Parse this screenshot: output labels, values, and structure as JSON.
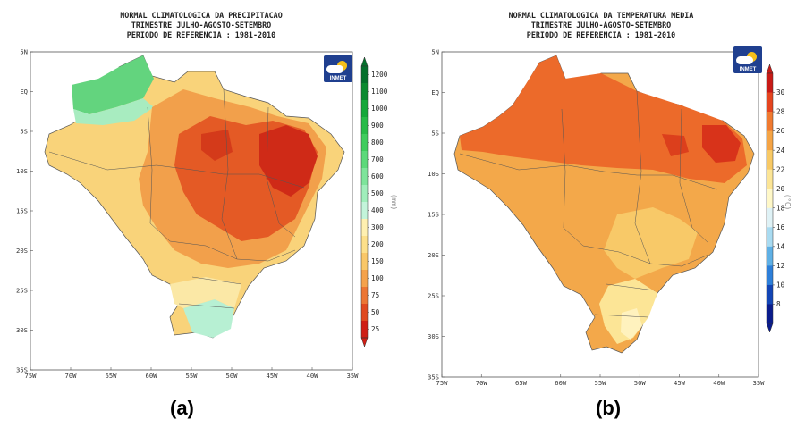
{
  "panel_a": {
    "title_lines": [
      "NORMAL CLIMATOLOGICA DA PRECIPITACAO",
      "TRIMESTRE JULHO-AGOSTO-SETEMBRO",
      "PERIODO DE REFERENCIA : 1981-2010"
    ],
    "logo_text": "INMET",
    "unit": "(mm)",
    "caption": "(a)",
    "colorbar_labels": [
      "1200",
      "1100",
      "1000",
      "900",
      "800",
      "700",
      "600",
      "500",
      "400",
      "300",
      "200",
      "150",
      "100",
      "75",
      "50",
      "25"
    ],
    "colorbar_colors": [
      "#05702c",
      "#0c8a30",
      "#16a83a",
      "#28bb48",
      "#3fcc5d",
      "#5cd97a",
      "#7ee49b",
      "#a0eebb",
      "#c3f4da",
      "#fff0b0",
      "#fde08a",
      "#f9c768",
      "#f4a24c",
      "#ec7634",
      "#e0491f",
      "#cf1e15"
    ]
  },
  "panel_b": {
    "title_lines": [
      "NORMAL CLIMATOLOGICA DA TEMPERATURA MEDIA",
      "TRIMESTRE JULHO-AGOSTO-SETEMBRO",
      "PERIODO DE REFERENCIA : 1981-2010"
    ],
    "logo_text": "INMET",
    "unit": "(°C)",
    "caption": "(b)",
    "colorbar_labels": [
      "30",
      "28",
      "26",
      "24",
      "22",
      "20",
      "18",
      "16",
      "14",
      "12",
      "10",
      "8"
    ],
    "colorbar_colors": [
      "#c81a16",
      "#e5451f",
      "#f07a30",
      "#f5a445",
      "#f8c965",
      "#fce596",
      "#fff8c8",
      "#dff2f6",
      "#a9dbf1",
      "#5fb0e5",
      "#2d7fd9",
      "#1245b5",
      "#0a1c8c"
    ]
  },
  "map_axes": {
    "y_ticks": [
      "5N",
      "EQ",
      "5S",
      "10S",
      "15S",
      "20S",
      "25S",
      "30S",
      "35S"
    ],
    "x_ticks": [
      "75W",
      "70W",
      "65W",
      "60W",
      "55W",
      "50W",
      "45W",
      "40W",
      "35W"
    ]
  },
  "colors": {
    "background": "#ffffff",
    "border": "#666666"
  }
}
